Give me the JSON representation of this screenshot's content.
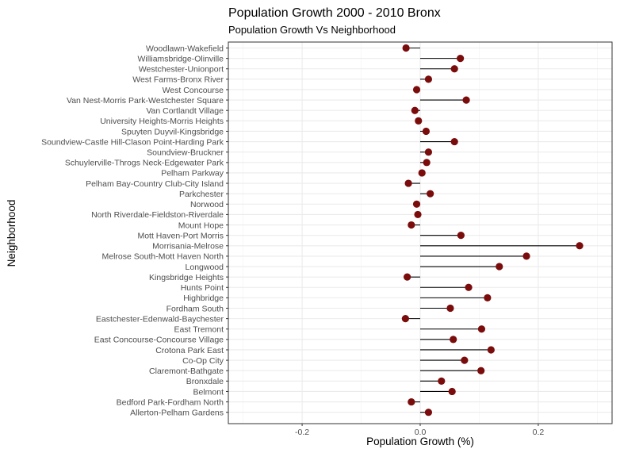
{
  "chart_data": {
    "type": "lollipop",
    "title": "Population Growth 2000 - 2010 Bronx",
    "subtitle": "Population Growth Vs Neighborhood",
    "xlabel": "Population Growth (%)",
    "ylabel": "Neighborhood",
    "xlim": [
      -0.325,
      0.325
    ],
    "xticks": [
      -0.2,
      0.0,
      0.2
    ],
    "xtick_labels": [
      "-0.2",
      "0.0",
      "0.2"
    ],
    "grid": true,
    "point_color": "#7a0c0c",
    "stem_color": "#000000",
    "categories": [
      "Woodlawn-Wakefield",
      "Williamsbridge-Olinville",
      "Westchester-Unionport",
      "West Farms-Bronx River",
      "West Concourse",
      "Van Nest-Morris Park-Westchester Square",
      "Van Cortlandt Village",
      "University Heights-Morris Heights",
      "Spuyten Duyvil-Kingsbridge",
      "Soundview-Castle Hill-Clason Point-Harding Park",
      "Soundview-Bruckner",
      "Schuylerville-Throgs Neck-Edgewater Park",
      "Pelham Parkway",
      "Pelham Bay-Country Club-City Island",
      "Parkchester",
      "Norwood",
      "North Riverdale-Fieldston-Riverdale",
      "Mount Hope",
      "Mott Haven-Port Morris",
      "Morrisania-Melrose",
      "Melrose South-Mott Haven North",
      "Longwood",
      "Kingsbridge Heights",
      "Hunts Point",
      "Highbridge",
      "Fordham South",
      "Eastchester-Edenwald-Baychester",
      "East Tremont",
      "East Concourse-Concourse Village",
      "Crotona Park East",
      "Co-Op City",
      "Claremont-Bathgate",
      "Bronxdale",
      "Belmont",
      "Bedford Park-Fordham North",
      "Allerton-Pelham Gardens"
    ],
    "values": [
      -0.024,
      0.068,
      0.058,
      0.014,
      -0.006,
      0.078,
      -0.009,
      -0.003,
      0.01,
      0.058,
      0.014,
      0.011,
      0.003,
      -0.02,
      0.017,
      -0.006,
      -0.004,
      -0.015,
      0.069,
      0.27,
      0.18,
      0.134,
      -0.022,
      0.082,
      0.114,
      0.051,
      -0.025,
      0.104,
      0.056,
      0.12,
      0.075,
      0.103,
      0.036,
      0.054,
      -0.015,
      0.014
    ]
  }
}
